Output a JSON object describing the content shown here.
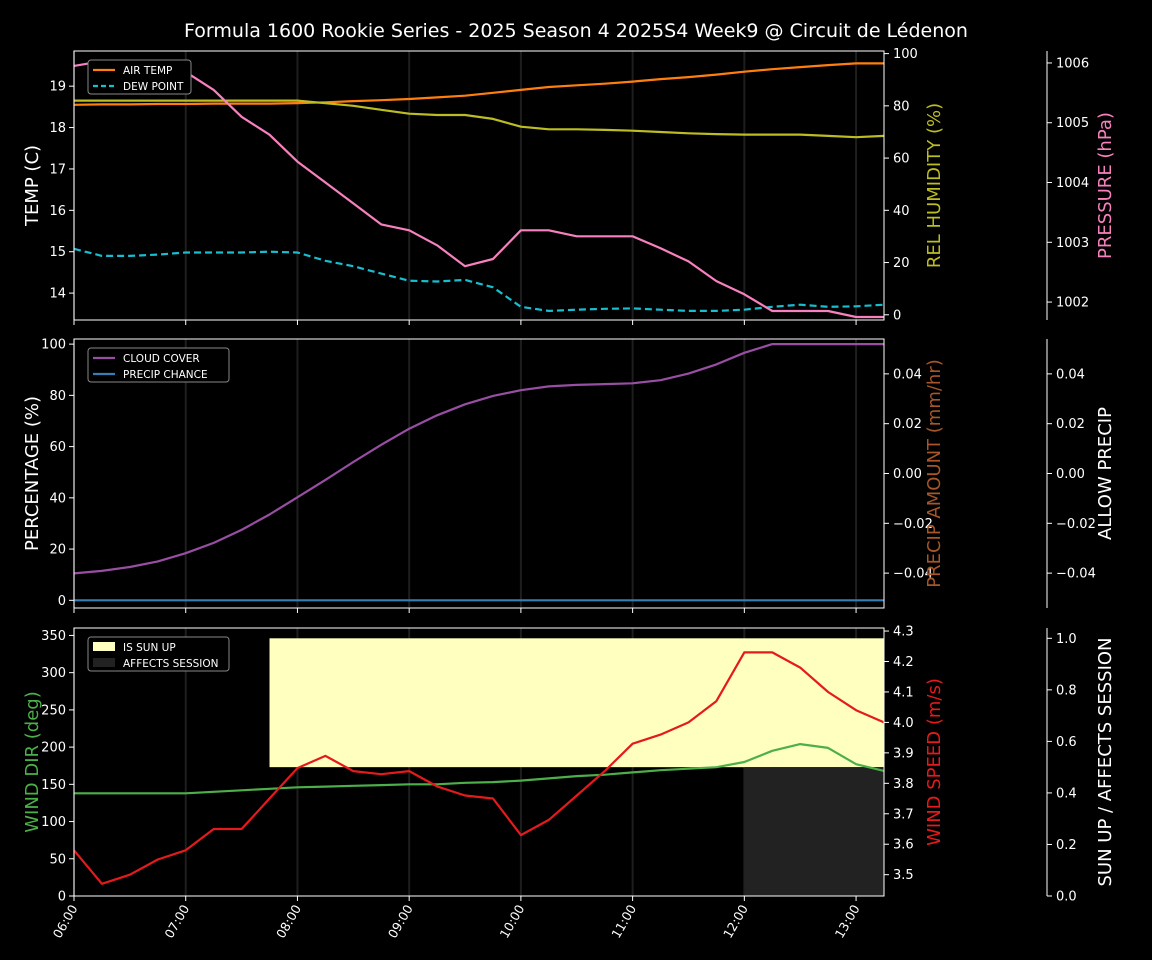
{
  "title": "Formula 1600 Rookie Series - 2025 Season 4 2025S4 Week9 @ Circuit de Lédenon",
  "x_ticks": [
    "06:00",
    "07:00",
    "08:00",
    "09:00",
    "10:00",
    "11:00",
    "12:00",
    "13:00"
  ],
  "colors": {
    "air_temp": "#ff7f0e",
    "dew_point": "#17becf",
    "humidity": "#bcbd22",
    "pressure": "#f781bf",
    "cloud": "#984ea3",
    "precip_chance": "#377eb8",
    "precip_amount": "#a65628",
    "wind_dir": "#4daf4a",
    "wind_speed": "#e41a1c",
    "sun_up": "#ffffc0",
    "affects": "#222222"
  },
  "chart_data": [
    {
      "type": "line",
      "x_unit": "hours since 06:00",
      "x": [
        0,
        0.25,
        0.5,
        0.75,
        1,
        1.25,
        1.5,
        1.75,
        2,
        2.25,
        2.5,
        2.75,
        3,
        3.25,
        3.5,
        3.75,
        4,
        4.25,
        4.5,
        4.75,
        5,
        5.25,
        5.5,
        5.75,
        6,
        6.25,
        6.5,
        6.75,
        7,
        7.25
      ],
      "axes": {
        "left": {
          "label": "TEMP (C)",
          "ylim": [
            13.35,
            19.85
          ],
          "ticks": [
            14,
            15,
            16,
            17,
            18,
            19
          ]
        },
        "right1": {
          "label": "REL HUMIDITY (%)",
          "ylim": [
            -2,
            101
          ],
          "ticks": [
            0,
            20,
            40,
            60,
            80,
            100
          ]
        },
        "right2": {
          "label": "PRESSURE (hPa)",
          "ylim": [
            1001.7,
            1006.2
          ],
          "ticks": [
            1002,
            1003,
            1004,
            1005,
            1006
          ]
        }
      },
      "legend": [
        "AIR TEMP",
        "DEW POINT"
      ],
      "legend_position": "top-left",
      "series": [
        {
          "name": "AIR TEMP",
          "axis": "left",
          "style": "solid",
          "values": [
            18.55,
            18.56,
            18.56,
            18.57,
            18.57,
            18.58,
            18.58,
            18.58,
            18.59,
            18.61,
            18.64,
            18.66,
            18.69,
            18.73,
            18.77,
            18.84,
            18.91,
            18.98,
            19.02,
            19.06,
            19.11,
            19.17,
            19.22,
            19.28,
            19.35,
            19.41,
            19.46,
            19.51,
            19.55,
            19.55
          ]
        },
        {
          "name": "DEW POINT",
          "axis": "left",
          "style": "dashed",
          "values": [
            15.07,
            14.9,
            14.9,
            14.93,
            14.98,
            14.98,
            14.98,
            15.0,
            14.98,
            14.78,
            14.65,
            14.47,
            14.3,
            14.28,
            14.32,
            14.14,
            13.67,
            13.57,
            13.6,
            13.62,
            13.63,
            13.6,
            13.57,
            13.57,
            13.6,
            13.67,
            13.72,
            13.67,
            13.68,
            13.72
          ]
        },
        {
          "axis": "right1",
          "style": "solid",
          "values": [
            82,
            82,
            82,
            82,
            82,
            82,
            82,
            82,
            82,
            81,
            80,
            78.5,
            77,
            76.5,
            76.5,
            75,
            72,
            71,
            71,
            70.8,
            70.5,
            70,
            69.5,
            69.2,
            69,
            69,
            69,
            68.5,
            68,
            68.5
          ]
        },
        {
          "axis": "right2",
          "style": "solid",
          "values": [
            1005.95,
            1006.03,
            1006.03,
            1006.0,
            1005.85,
            1005.55,
            1005.1,
            1004.8,
            1004.35,
            1004.0,
            1003.65,
            1003.3,
            1003.2,
            1002.95,
            1002.6,
            1002.72,
            1003.2,
            1003.2,
            1003.1,
            1003.1,
            1003.1,
            1002.9,
            1002.68,
            1002.35,
            1002.13,
            1001.85,
            1001.85,
            1001.85,
            1001.75,
            1001.75
          ]
        }
      ]
    },
    {
      "type": "line",
      "x_unit": "hours since 06:00",
      "x": [
        0,
        0.25,
        0.5,
        0.75,
        1,
        1.25,
        1.5,
        1.75,
        2,
        2.25,
        2.5,
        2.75,
        3,
        3.25,
        3.5,
        3.75,
        4,
        4.25,
        4.5,
        4.75,
        5,
        5.25,
        5.5,
        5.75,
        6,
        6.25,
        6.5,
        6.75,
        7,
        7.25
      ],
      "axes": {
        "left": {
          "label": "PERCENTAGE (%)",
          "ylim": [
            -3,
            102
          ],
          "ticks": [
            0,
            20,
            40,
            60,
            80,
            100
          ]
        },
        "right1": {
          "label": "PRECIP AMOUNT (mm/hr)",
          "ylim": [
            -0.054,
            0.054
          ],
          "ticks": [
            "−0.04",
            "−0.02",
            "0.00",
            "0.02",
            "0.04"
          ],
          "tick_values": [
            -0.04,
            -0.02,
            0,
            0.02,
            0.04
          ]
        },
        "right2": {
          "label": "ALLOW PRECIP",
          "ylim": [
            -0.054,
            0.054
          ],
          "ticks": [
            "−0.04",
            "−0.02",
            "0.00",
            "0.02",
            "0.04"
          ],
          "tick_values": [
            -0.04,
            -0.02,
            0,
            0.02,
            0.04
          ]
        }
      },
      "legend": [
        "CLOUD COVER",
        "PRECIP CHANCE"
      ],
      "legend_position": "top-left",
      "series": [
        {
          "name": "CLOUD COVER",
          "axis": "left",
          "style": "solid",
          "values": [
            10.5,
            11.5,
            13,
            15.2,
            18.4,
            22.4,
            27.5,
            33.5,
            40.2,
            47,
            54,
            60.7,
            67,
            72.2,
            76.5,
            79.8,
            82,
            83.5,
            84.1,
            84.4,
            84.7,
            85.9,
            88.5,
            92.1,
            96.6,
            100,
            100,
            100,
            100,
            100
          ]
        },
        {
          "name": "PRECIP CHANCE",
          "axis": "left",
          "style": "solid",
          "values": [
            0,
            0,
            0,
            0,
            0,
            0,
            0,
            0,
            0,
            0,
            0,
            0,
            0,
            0,
            0,
            0,
            0,
            0,
            0,
            0,
            0,
            0,
            0,
            0,
            0,
            0,
            0,
            0,
            0,
            0
          ]
        }
      ]
    },
    {
      "type": "line",
      "x_unit": "hours since 06:00",
      "x": [
        0,
        0.25,
        0.5,
        0.75,
        1,
        1.25,
        1.5,
        1.75,
        2,
        2.25,
        2.5,
        2.75,
        3,
        3.25,
        3.5,
        3.75,
        4,
        4.25,
        4.5,
        4.75,
        5,
        5.25,
        5.5,
        5.75,
        6,
        6.25,
        6.5,
        6.75,
        7,
        7.25
      ],
      "axes": {
        "left": {
          "label": "WIND DIR (deg)",
          "ylim": [
            0,
            360
          ],
          "ticks": [
            0,
            50,
            100,
            150,
            200,
            250,
            300,
            350
          ]
        },
        "right1": {
          "label": "WIND SPEED (m/s)",
          "ylim": [
            3.43,
            4.31
          ],
          "ticks": [
            "3.5",
            "3.6",
            "3.7",
            "3.8",
            "3.9",
            "4.0",
            "4.1",
            "4.2",
            "4.3"
          ],
          "tick_values": [
            3.5,
            3.6,
            3.7,
            3.8,
            3.9,
            4.0,
            4.1,
            4.2,
            4.3
          ]
        },
        "right2": {
          "label": "SUN UP / AFFECTS SESSION",
          "ylim": [
            0,
            1.04
          ],
          "ticks": [
            "0.0",
            "0.2",
            "0.4",
            "0.6",
            "0.8",
            "1.0"
          ],
          "tick_values": [
            0,
            0.2,
            0.4,
            0.6,
            0.8,
            1.0
          ]
        }
      },
      "legend": [
        "IS SUN UP",
        "AFFECTS SESSION"
      ],
      "legend_position": "top-left",
      "bands": [
        {
          "name": "IS SUN UP",
          "x_start": 1.75,
          "x_end": 7.25,
          "y_start": 0.5,
          "y_end": 1.0
        },
        {
          "name": "AFFECTS SESSION",
          "x_start": 6.0,
          "x_end": 7.25,
          "y_start": 0,
          "y_end": 0.5
        }
      ],
      "series": [
        {
          "axis": "left",
          "style": "solid",
          "values": [
            138,
            138,
            138,
            138,
            138,
            140,
            142,
            144,
            146,
            147,
            148,
            149,
            150,
            150,
            152,
            153,
            155,
            158,
            161,
            163,
            166,
            169,
            171,
            173,
            180,
            195,
            204,
            199,
            177,
            168
          ]
        },
        {
          "axis": "right1",
          "style": "solid",
          "values": [
            3.58,
            3.47,
            3.5,
            3.55,
            3.58,
            3.65,
            3.65,
            3.75,
            3.85,
            3.89,
            3.84,
            3.83,
            3.84,
            3.79,
            3.76,
            3.75,
            3.63,
            3.68,
            3.76,
            3.84,
            3.93,
            3.96,
            4.0,
            4.07,
            4.23,
            4.23,
            4.18,
            4.1,
            4.04,
            4.0
          ]
        }
      ]
    }
  ]
}
